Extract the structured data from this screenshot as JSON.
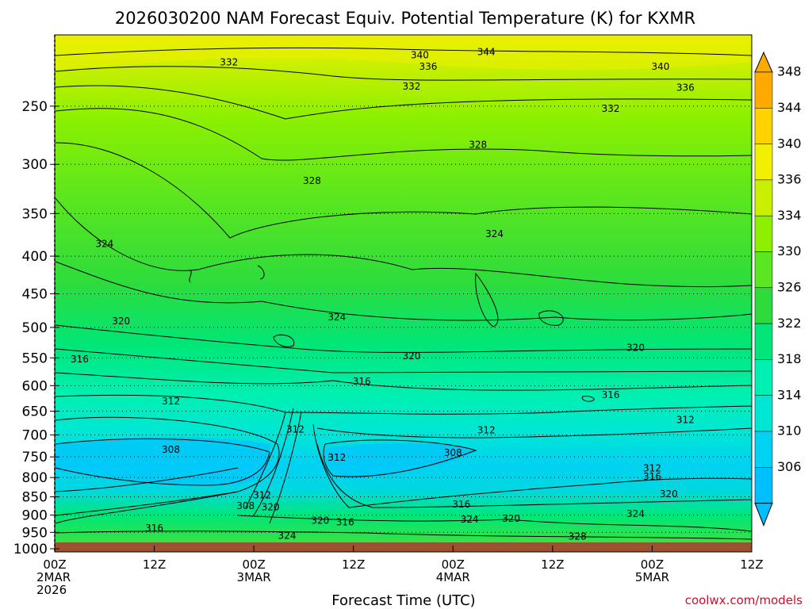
{
  "chart_data": {
    "type": "heatmap",
    "title": "2026030200 NAM Forecast Equiv. Potential Temperature (K) for KXMR",
    "xlabel": "Forecast Time (UTC)",
    "ylabel": "",
    "x_ticks": [
      {
        "hour": 0,
        "lines": [
          "00Z",
          "2MAR",
          "2026"
        ]
      },
      {
        "hour": 12,
        "lines": [
          "12Z"
        ]
      },
      {
        "hour": 24,
        "lines": [
          "00Z",
          "3MAR"
        ]
      },
      {
        "hour": 36,
        "lines": [
          "12Z"
        ]
      },
      {
        "hour": 48,
        "lines": [
          "00Z",
          "4MAR"
        ]
      },
      {
        "hour": 60,
        "lines": [
          "12Z"
        ]
      },
      {
        "hour": 72,
        "lines": [
          "00Z",
          "5MAR"
        ]
      },
      {
        "hour": 84,
        "lines": [
          "12Z"
        ]
      }
    ],
    "xlim_hours": [
      0,
      84
    ],
    "y_ticks": [
      250,
      300,
      350,
      400,
      450,
      500,
      550,
      600,
      650,
      700,
      750,
      800,
      850,
      900,
      950,
      1000
    ],
    "ylim_hpa": [
      200,
      1010
    ],
    "y_scale": "log-pressure",
    "grid": "dotted horizontal at each pressure tick",
    "colorbar": {
      "labels": [
        306,
        310,
        314,
        318,
        322,
        326,
        330,
        334,
        336,
        340,
        344,
        348
      ],
      "colors": [
        "#00bfff",
        "#00d2f2",
        "#00e6d5",
        "#00f0b4",
        "#00e678",
        "#2ddc3c",
        "#5ae620",
        "#8cf000",
        "#c8f000",
        "#f0f000",
        "#ffd200",
        "#ffaa00"
      ]
    },
    "contour_labels": [
      {
        "hour": 21,
        "hpa": 218,
        "value": "332"
      },
      {
        "hour": 44,
        "hpa": 213,
        "value": "340"
      },
      {
        "hour": 45,
        "hpa": 221,
        "value": "336"
      },
      {
        "hour": 52,
        "hpa": 211,
        "value": "344"
      },
      {
        "hour": 73,
        "hpa": 221,
        "value": "340"
      },
      {
        "hour": 76,
        "hpa": 236,
        "value": "336"
      },
      {
        "hour": 43,
        "hpa": 235,
        "value": "332"
      },
      {
        "hour": 67,
        "hpa": 252,
        "value": "332"
      },
      {
        "hour": 51,
        "hpa": 282,
        "value": "328"
      },
      {
        "hour": 31,
        "hpa": 316,
        "value": "328"
      },
      {
        "hour": 6,
        "hpa": 385,
        "value": "324"
      },
      {
        "hour": 53,
        "hpa": 373,
        "value": "324"
      },
      {
        "hour": 34,
        "hpa": 484,
        "value": "324"
      },
      {
        "hour": 8,
        "hpa": 490,
        "value": "320"
      },
      {
        "hour": 3,
        "hpa": 552,
        "value": "316"
      },
      {
        "hour": 43,
        "hpa": 547,
        "value": "320"
      },
      {
        "hour": 70,
        "hpa": 533,
        "value": "320"
      },
      {
        "hour": 37,
        "hpa": 592,
        "value": "316"
      },
      {
        "hour": 67,
        "hpa": 618,
        "value": "316"
      },
      {
        "hour": 14,
        "hpa": 630,
        "value": "312"
      },
      {
        "hour": 29,
        "hpa": 688,
        "value": "312"
      },
      {
        "hour": 52,
        "hpa": 690,
        "value": "312"
      },
      {
        "hour": 76,
        "hpa": 668,
        "value": "312"
      },
      {
        "hour": 14,
        "hpa": 733,
        "value": "308"
      },
      {
        "hour": 48,
        "hpa": 740,
        "value": "308"
      },
      {
        "hour": 34,
        "hpa": 752,
        "value": "312"
      },
      {
        "hour": 72,
        "hpa": 777,
        "value": "312"
      },
      {
        "hour": 72,
        "hpa": 798,
        "value": "316"
      },
      {
        "hour": 74,
        "hpa": 842,
        "value": "320"
      },
      {
        "hour": 25,
        "hpa": 846,
        "value": "312"
      },
      {
        "hour": 23,
        "hpa": 875,
        "value": "308"
      },
      {
        "hour": 26,
        "hpa": 878,
        "value": "320"
      },
      {
        "hour": 49,
        "hpa": 870,
        "value": "316"
      },
      {
        "hour": 12,
        "hpa": 937,
        "value": "316"
      },
      {
        "hour": 32,
        "hpa": 916,
        "value": "320"
      },
      {
        "hour": 35,
        "hpa": 920,
        "value": "316"
      },
      {
        "hour": 50,
        "hpa": 912,
        "value": "324"
      },
      {
        "hour": 55,
        "hpa": 910,
        "value": "320"
      },
      {
        "hour": 70,
        "hpa": 897,
        "value": "324"
      },
      {
        "hour": 28,
        "hpa": 960,
        "value": "324"
      },
      {
        "hour": 63,
        "hpa": 962,
        "value": "328"
      }
    ],
    "credit": "coolwx.com/models"
  }
}
